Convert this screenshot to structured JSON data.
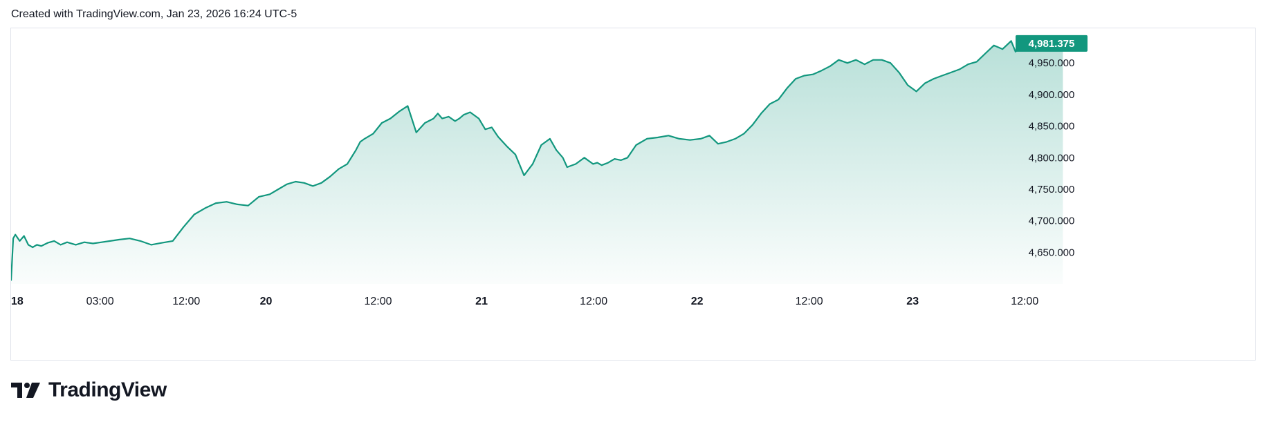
{
  "header": {
    "text": "Created with TradingView.com, Jan 23, 2026 16:24 UTC-5"
  },
  "brand": {
    "name": "TradingView",
    "logo_icon": "tradingview-logo-icon"
  },
  "colors": {
    "line": "#12977e",
    "fill": "#12977e",
    "badge_bg": "#12977e",
    "badge_text": "#ffffff",
    "axis_text": "#131722",
    "border": "#e0e3eb"
  },
  "chart_data": {
    "type": "area",
    "last_price_label": "4,981.375",
    "ylim": [
      4600,
      5005
    ],
    "xlim": [
      0,
      5.45
    ],
    "y_ticks": [
      {
        "value": 4650,
        "label": "4,650.000"
      },
      {
        "value": 4700,
        "label": "4,700.000"
      },
      {
        "value": 4750,
        "label": "4,750.000"
      },
      {
        "value": 4800,
        "label": "4,800.000"
      },
      {
        "value": 4850,
        "label": "4,850.000"
      },
      {
        "value": 4900,
        "label": "4,900.000"
      },
      {
        "value": 4950,
        "label": "4,950.000"
      }
    ],
    "x_ticks": [
      {
        "value": 0.0,
        "label": "18",
        "bold": true
      },
      {
        "value": 0.4,
        "label": "03:00",
        "bold": false
      },
      {
        "value": 0.8,
        "label": "12:00",
        "bold": false
      },
      {
        "value": 1.17,
        "label": "20",
        "bold": true
      },
      {
        "value": 1.69,
        "label": "12:00",
        "bold": false
      },
      {
        "value": 2.17,
        "label": "21",
        "bold": true
      },
      {
        "value": 2.69,
        "label": "12:00",
        "bold": false
      },
      {
        "value": 3.17,
        "label": "22",
        "bold": true
      },
      {
        "value": 3.69,
        "label": "12:00",
        "bold": false
      },
      {
        "value": 4.17,
        "label": "23",
        "bold": true
      },
      {
        "value": 4.69,
        "label": "12:00",
        "bold": false
      }
    ],
    "x": [
      0.0,
      0.01,
      0.02,
      0.04,
      0.06,
      0.08,
      0.1,
      0.12,
      0.14,
      0.17,
      0.2,
      0.23,
      0.26,
      0.3,
      0.34,
      0.38,
      0.42,
      0.46,
      0.5,
      0.55,
      0.6,
      0.65,
      0.7,
      0.75,
      0.8,
      0.85,
      0.9,
      0.95,
      1.0,
      1.05,
      1.1,
      1.15,
      1.2,
      1.24,
      1.28,
      1.32,
      1.36,
      1.4,
      1.44,
      1.48,
      1.52,
      1.56,
      1.6,
      1.62,
      1.64,
      1.68,
      1.72,
      1.76,
      1.8,
      1.84,
      1.88,
      1.92,
      1.96,
      1.98,
      2.0,
      2.03,
      2.06,
      2.08,
      2.1,
      2.13,
      2.17,
      2.2,
      2.23,
      2.26,
      2.3,
      2.34,
      2.38,
      2.42,
      2.46,
      2.5,
      2.53,
      2.56,
      2.58,
      2.62,
      2.66,
      2.7,
      2.72,
      2.74,
      2.77,
      2.8,
      2.83,
      2.86,
      2.9,
      2.95,
      3.0,
      3.05,
      3.1,
      3.15,
      3.2,
      3.24,
      3.28,
      3.32,
      3.36,
      3.4,
      3.44,
      3.48,
      3.52,
      3.56,
      3.6,
      3.64,
      3.68,
      3.72,
      3.76,
      3.8,
      3.84,
      3.88,
      3.92,
      3.96,
      4.0,
      4.04,
      4.08,
      4.12,
      4.16,
      4.2,
      4.24,
      4.28,
      4.32,
      4.36,
      4.4,
      4.44,
      4.48,
      4.52,
      4.56,
      4.6,
      4.64,
      4.66,
      4.68,
      4.7,
      4.73,
      4.76,
      4.8,
      4.84,
      4.88
    ],
    "values": [
      4605,
      4672,
      4678,
      4668,
      4676,
      4662,
      4658,
      4662,
      4660,
      4665,
      4668,
      4662,
      4666,
      4662,
      4666,
      4664,
      4666,
      4668,
      4670,
      4672,
      4668,
      4662,
      4665,
      4668,
      4690,
      4710,
      4720,
      4728,
      4730,
      4726,
      4724,
      4738,
      4742,
      4750,
      4758,
      4762,
      4760,
      4755,
      4760,
      4770,
      4782,
      4790,
      4812,
      4825,
      4830,
      4838,
      4855,
      4862,
      4873,
      4882,
      4840,
      4855,
      4862,
      4870,
      4862,
      4865,
      4858,
      4862,
      4868,
      4872,
      4862,
      4845,
      4848,
      4833,
      4818,
      4805,
      4772,
      4790,
      4820,
      4830,
      4812,
      4800,
      4785,
      4790,
      4800,
      4790,
      4792,
      4788,
      4792,
      4798,
      4796,
      4800,
      4820,
      4830,
      4832,
      4835,
      4830,
      4828,
      4830,
      4835,
      4822,
      4825,
      4830,
      4838,
      4852,
      4870,
      4885,
      4892,
      4910,
      4925,
      4930,
      4932,
      4938,
      4945,
      4955,
      4950,
      4955,
      4948,
      4955,
      4955,
      4950,
      4935,
      4915,
      4905,
      4918,
      4925,
      4930,
      4935,
      4940,
      4948,
      4952,
      4965,
      4978,
      4972,
      4985,
      4968,
      4975,
      4980,
      4982,
      4982,
      4981,
      4981,
      4981
    ]
  }
}
